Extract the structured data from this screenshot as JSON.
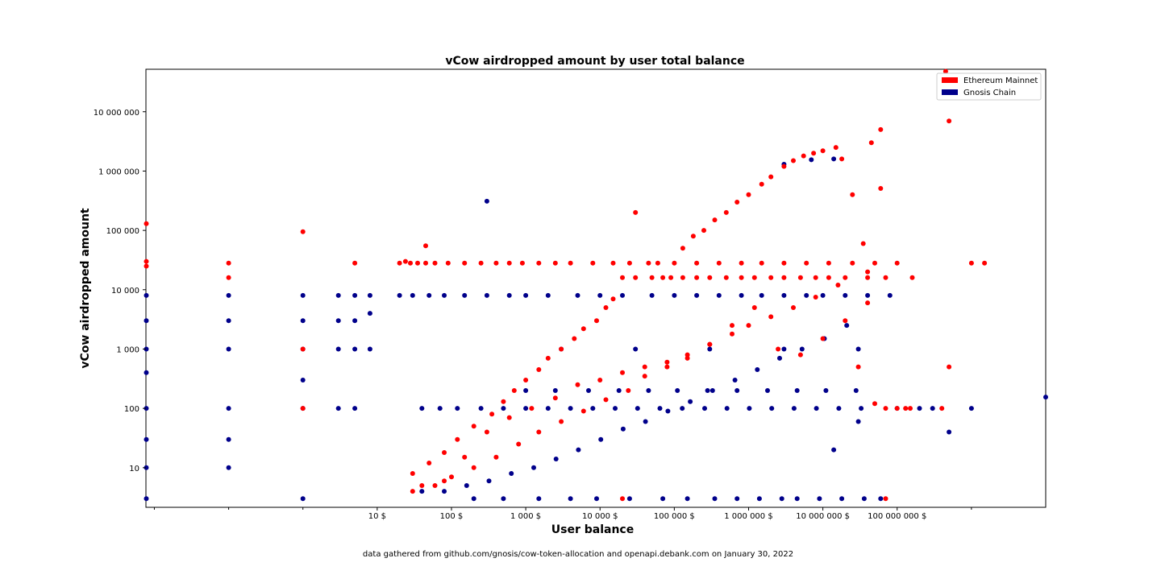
{
  "chart_data": {
    "type": "scatter",
    "title": "vCow airdropped amount by user total balance",
    "xlabel": "User balance",
    "ylabel": "vCow airdropped amount",
    "xscale": "log",
    "yscale": "log",
    "xlim": [
      0.0077,
      10000000000
    ],
    "ylim": [
      2.15,
      52000000
    ],
    "grid": false,
    "legend_position": "top-right",
    "x_ticks": [
      {
        "value": 10,
        "label": "10 $"
      },
      {
        "value": 100,
        "label": "100 $"
      },
      {
        "value": 1000,
        "label": "1 000 $"
      },
      {
        "value": 10000,
        "label": "10 000 $"
      },
      {
        "value": 100000,
        "label": "100 000 $"
      },
      {
        "value": 1000000,
        "label": "1 000 000 $"
      },
      {
        "value": 10000000,
        "label": "10 000 000 $"
      },
      {
        "value": 100000000,
        "label": "100 000 000 $"
      }
    ],
    "x_minor_ticks": [
      0.01,
      0.1,
      1,
      1000000000
    ],
    "y_ticks": [
      {
        "value": 10,
        "label": "10"
      },
      {
        "value": 100,
        "label": "100"
      },
      {
        "value": 1000,
        "label": "1 000"
      },
      {
        "value": 10000,
        "label": "10 000"
      },
      {
        "value": 100000,
        "label": "100 000"
      },
      {
        "value": 1000000,
        "label": "1 000 000"
      },
      {
        "value": 10000000,
        "label": "10 000 000"
      }
    ],
    "series": [
      {
        "name": "Ethereum Mainnet",
        "color": "#ff0000",
        "x": [
          0.0078,
          0.0078,
          0.0078,
          0.1,
          0.1,
          1,
          1,
          1,
          5,
          20,
          24,
          28,
          35,
          45,
          60,
          90,
          150,
          250,
          400,
          600,
          900,
          1500,
          2500,
          4000,
          8000,
          15000,
          25000,
          45000,
          60000,
          100000,
          200000,
          400000,
          800000,
          1500000,
          3000000,
          6000000,
          12000000,
          25000000,
          50000000,
          100000000,
          20000,
          30000,
          50000,
          70000,
          90000,
          130000,
          200000,
          300000,
          500000,
          800000,
          1200000,
          2000000,
          3000000,
          5000000,
          8000000,
          12000000,
          20000000,
          40000000,
          70000000,
          1000000000,
          1500000000,
          160000000,
          30000000,
          50000000,
          70000000,
          130000,
          180000,
          250000,
          350000,
          500000,
          700000,
          1000000,
          1500000,
          2000000,
          3000000,
          4000000,
          5500000,
          7500000,
          10000000,
          15000000,
          18000000,
          25000000,
          35000000,
          45000000,
          60000000,
          450000000,
          500000000,
          30,
          50,
          80,
          120,
          200,
          350,
          500,
          700,
          1000,
          1500,
          2000,
          3000,
          4500,
          6000,
          9000,
          12000,
          15000,
          20000,
          30,
          60,
          100,
          200,
          400,
          800,
          1500,
          3000,
          6000,
          12000,
          24000,
          40000,
          80000,
          150000,
          300000,
          600000,
          1000000,
          2000000,
          4000000,
          8000000,
          16000000,
          40000000,
          60000000,
          30000,
          400000000,
          500000000,
          70000000,
          100000000,
          130000000,
          150000000,
          45,
          40,
          80,
          150,
          300,
          600,
          1200,
          2500,
          5000,
          10000,
          20000,
          40000,
          80000,
          150000,
          300000,
          600000,
          1200000,
          2500000,
          5000000,
          10000000,
          20000000,
          40000000
        ],
        "y": [
          130000,
          30000,
          25000,
          28000,
          16000,
          95000,
          1000,
          100,
          28000,
          28000,
          30000,
          28000,
          28000,
          28000,
          28000,
          28000,
          28000,
          28000,
          28000,
          28000,
          28000,
          28000,
          28000,
          28000,
          28000,
          28000,
          28000,
          28000,
          28000,
          28000,
          28000,
          28000,
          28000,
          28000,
          28000,
          28000,
          28000,
          28000,
          28000,
          28000,
          16000,
          16000,
          16000,
          16000,
          16000,
          16000,
          16000,
          16000,
          16000,
          16000,
          16000,
          16000,
          16000,
          16000,
          16000,
          16000,
          16000,
          16000,
          16000,
          28000,
          28000,
          16000,
          500,
          120,
          100,
          50000,
          80000,
          100000,
          150000,
          200000,
          300000,
          400000,
          600000,
          800000,
          1200000,
          1500000,
          1800000,
          2000000,
          2200000,
          2500000,
          1600000,
          400000,
          60000,
          3000000,
          5000000,
          48000000,
          500,
          8,
          12,
          18,
          30,
          50,
          80,
          130,
          200,
          300,
          450,
          700,
          1000,
          1500,
          2200,
          3000,
          5000,
          7000,
          3,
          4,
          5,
          7,
          10,
          15,
          25,
          40,
          60,
          90,
          140,
          200,
          350,
          500,
          800,
          1200,
          1800,
          2500,
          3500,
          5000,
          7500,
          12000,
          20000,
          510000,
          200000,
          100,
          7000000,
          3,
          100,
          100,
          100,
          55000,
          5,
          6,
          15,
          40,
          70,
          100,
          150,
          250,
          300,
          400,
          500,
          600,
          700,
          1200,
          2500,
          5000,
          1000,
          800,
          1500,
          3000,
          6000
        ]
      },
      {
        "name": "Gnosis Chain",
        "color": "#00008b",
        "x": [
          0.0078,
          0.0078,
          0.0078,
          0.0078,
          0.0078,
          0.0078,
          0.0078,
          0.0078,
          0.1,
          0.1,
          0.1,
          0.1,
          0.1,
          0.1,
          1,
          1,
          1,
          1,
          1,
          1,
          3,
          3,
          3,
          3,
          5,
          5,
          5,
          5,
          8,
          8,
          8,
          20,
          30,
          50,
          80,
          150,
          300,
          600,
          1000,
          2000,
          5000,
          10000,
          20000,
          50000,
          100000,
          200000,
          400000,
          800000,
          1500000,
          3000000,
          6000000,
          10000000,
          20000000,
          40000000,
          80000000,
          300,
          3000,
          30000,
          300000,
          3000000,
          30000000,
          200000000,
          1000000000,
          10000000000,
          500000000,
          300000000,
          100000000,
          7000000,
          14000000,
          3000000,
          200,
          500,
          1500,
          4000,
          9000,
          25000,
          70000,
          150000,
          350000,
          700000,
          1400000,
          2800000,
          4500000,
          9000000,
          18000000,
          36000000,
          60000000,
          40,
          70,
          120,
          250,
          500,
          1000,
          2000,
          4000,
          8000,
          16000,
          32000,
          64000,
          128000,
          256000,
          512000,
          1024000,
          2048000,
          4096000,
          8192000,
          16384000,
          32768000,
          40,
          80,
          160,
          320,
          640,
          1280,
          2560,
          5120,
          10240,
          20480,
          40960,
          81920,
          163840,
          327680,
          655360,
          1310720,
          2621440,
          5242880,
          10485760,
          20971520,
          1000,
          2500,
          7000,
          18000,
          45000,
          110000,
          280000,
          700000,
          1800000,
          4500000,
          11000000,
          28000000,
          14000000,
          30000000
        ],
        "y": [
          8000,
          3000,
          1000,
          400,
          100,
          30,
          10,
          3,
          8000,
          3000,
          1000,
          100,
          30,
          10,
          8000,
          3000,
          1000,
          300,
          100,
          3,
          8000,
          3000,
          1000,
          100,
          8000,
          3000,
          1000,
          100,
          8000,
          4000,
          1000,
          8000,
          8000,
          8000,
          8000,
          8000,
          8000,
          8000,
          8000,
          8000,
          8000,
          8000,
          8000,
          8000,
          8000,
          8000,
          8000,
          8000,
          8000,
          8000,
          8000,
          8000,
          8000,
          8000,
          8000,
          310000,
          1000,
          1000,
          1000,
          1000,
          1000,
          100,
          100,
          155,
          40,
          100,
          100,
          1550000,
          1600000,
          1300000,
          3,
          3,
          3,
          3,
          3,
          3,
          3,
          3,
          3,
          3,
          3,
          3,
          3,
          3,
          3,
          3,
          3,
          100,
          100,
          100,
          100,
          100,
          100,
          100,
          100,
          100,
          100,
          100,
          100,
          100,
          100,
          100,
          100,
          100,
          100,
          100,
          100,
          100,
          4,
          4,
          5,
          6,
          8,
          10,
          14,
          20,
          30,
          45,
          60,
          90,
          130,
          200,
          300,
          450,
          700,
          1000,
          1500,
          2500,
          200,
          200,
          200,
          200,
          200,
          200,
          200,
          200,
          200,
          200,
          200,
          200,
          20,
          60
        ]
      }
    ],
    "footer": "data gathered from github.com/gnosis/cow-token-allocation and openapi.debank.com on January 30, 2022"
  }
}
